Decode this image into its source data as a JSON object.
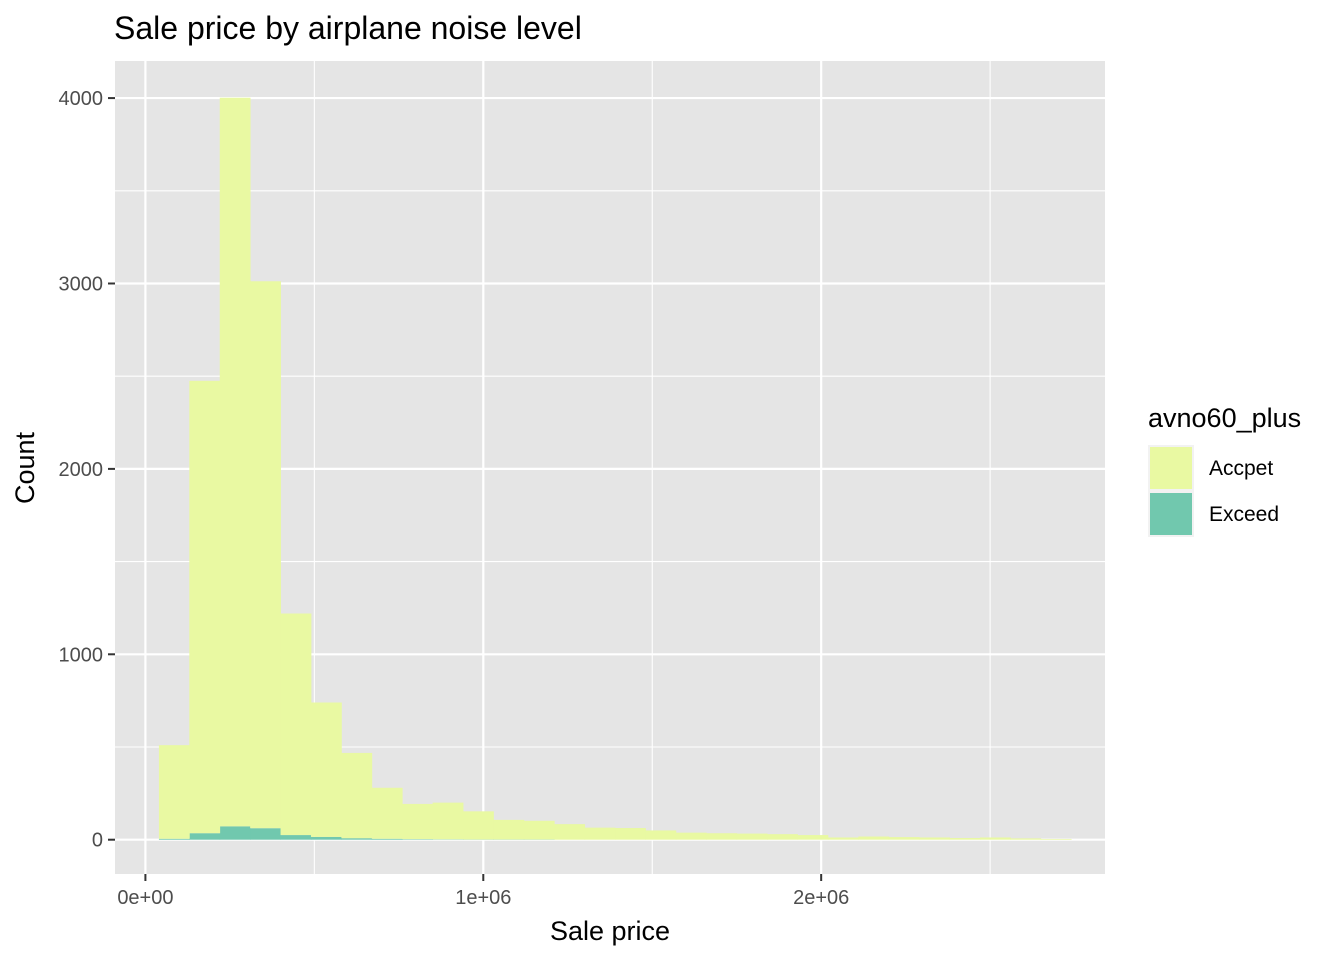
{
  "chart_data": {
    "type": "bar",
    "title": "Sale price by airplane noise level",
    "xlabel": "Sale price",
    "ylabel": "Count",
    "xlim": [
      -90000,
      2840000
    ],
    "ylim": [
      -185,
      4200
    ],
    "x_ticks": [
      0,
      1000000,
      2000000
    ],
    "x_tick_labels": [
      "0e+00",
      "1e+06",
      "2e+06"
    ],
    "y_ticks": [
      0,
      1000,
      2000,
      3000,
      4000
    ],
    "y_tick_labels": [
      "0",
      "1000",
      "2000",
      "3000",
      "4000"
    ],
    "grid": true,
    "stacked": true,
    "bin_width": 90000,
    "bin_starts": [
      40000,
      130000,
      220000,
      310000,
      400000,
      490000,
      580000,
      670000,
      760000,
      850000,
      940000,
      1030000,
      1120000,
      1210000,
      1300000,
      1390000,
      1480000,
      1570000,
      1660000,
      1750000,
      1840000,
      1930000,
      2020000,
      2110000,
      2200000,
      2290000,
      2380000,
      2470000,
      2560000,
      2650000
    ],
    "series": [
      {
        "name": "Accpet",
        "color": "#e9f9a2",
        "values": [
          505,
          2440,
          3930,
          2950,
          1195,
          725,
          460,
          275,
          190,
          198,
          152,
          106,
          101,
          84,
          65,
          63,
          50,
          38,
          35,
          33,
          30,
          25,
          12,
          17,
          14,
          12,
          9,
          12,
          7,
          4
        ]
      },
      {
        "name": "Exceed",
        "color": "#71c8ae",
        "values": [
          5,
          35,
          72,
          62,
          25,
          15,
          8,
          5,
          3,
          2,
          1,
          1,
          1,
          0,
          0,
          0,
          0,
          0,
          0,
          0,
          0,
          0,
          0,
          0,
          0,
          0,
          0,
          0,
          0,
          0
        ]
      }
    ],
    "legend": {
      "title": "avno60_plus",
      "position": "right"
    },
    "panel_background": "#e5e5e5",
    "grid_color": "#ffffff"
  }
}
